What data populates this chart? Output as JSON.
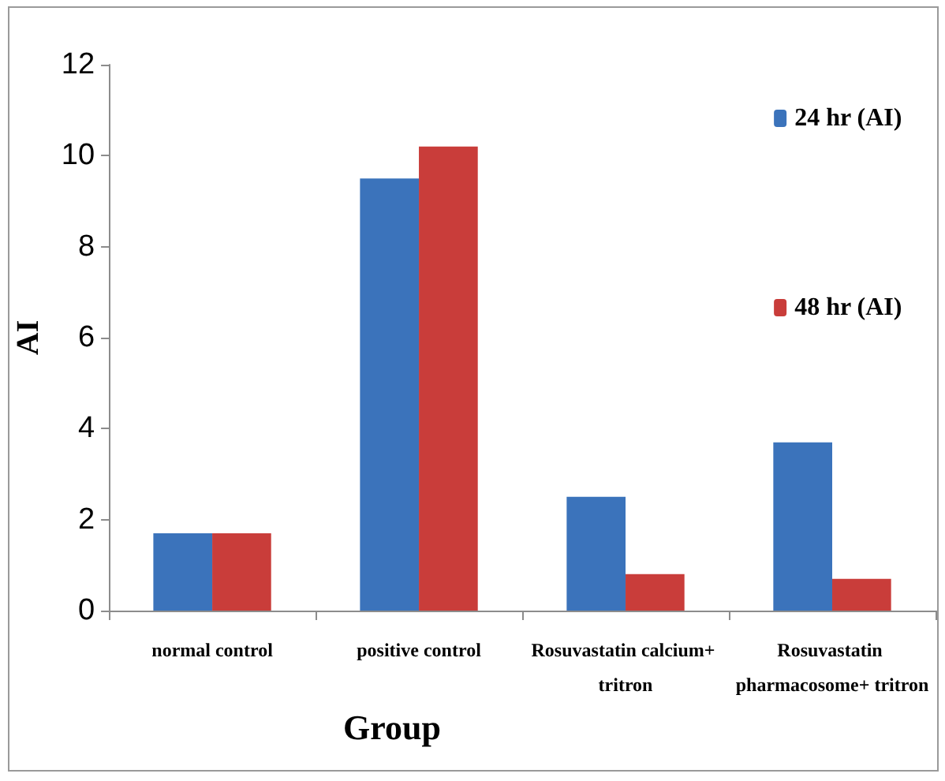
{
  "chart_data": {
    "type": "bar",
    "categories": [
      "normal control",
      "positive control",
      "Rosuvastatin calcium+ tritron",
      "Rosuvastatin pharmacosome+ tritron"
    ],
    "series": [
      {
        "name": "24 hr (AI)",
        "color": "#3b73bb",
        "values": [
          1.7,
          9.5,
          2.5,
          3.7
        ]
      },
      {
        "name": "48 hr (AI)",
        "color": "#c93d3a",
        "values": [
          1.7,
          10.2,
          0.8,
          0.7
        ]
      }
    ],
    "xlabel": "Group",
    "ylabel": "AI",
    "ylim": [
      0,
      12
    ],
    "yticks": [
      0,
      2,
      4,
      6,
      8,
      10,
      12
    ],
    "legend": "top right"
  }
}
